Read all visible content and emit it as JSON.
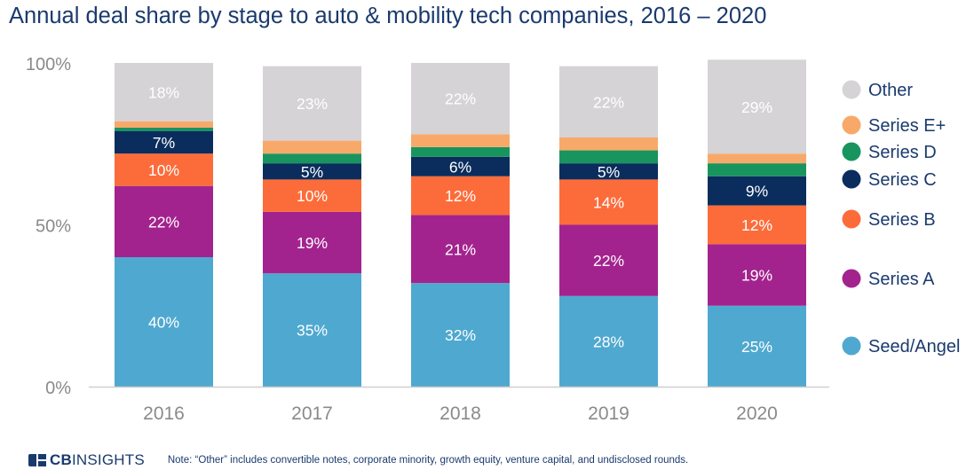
{
  "title": "Annual deal share by stage to auto & mobility tech companies, 2016 – 2020",
  "footer": {
    "logo_bold": "CB",
    "logo_light": "INSIGHTS",
    "note": "Note: “Other” includes convertible notes, corporate minority, growth equity, venture capital, and undisclosed rounds."
  },
  "chart_data": {
    "type": "bar",
    "stacked": true,
    "title": "Annual deal share by stage to auto & mobility tech companies, 2016 – 2020",
    "categories": [
      "2016",
      "2017",
      "2018",
      "2019",
      "2020"
    ],
    "y_ticks": [
      "0%",
      "50%",
      "100%"
    ],
    "ylim": [
      0,
      100
    ],
    "grid": false,
    "legend_position": "right",
    "series": [
      {
        "name": "Seed/Angel",
        "color": "#4fa8d0",
        "values": [
          40,
          35,
          32,
          28,
          25
        ],
        "labels": [
          "40%",
          "35%",
          "32%",
          "28%",
          "25%"
        ]
      },
      {
        "name": "Series A",
        "color": "#a3238e",
        "values": [
          22,
          19,
          21,
          22,
          19
        ],
        "labels": [
          "22%",
          "19%",
          "21%",
          "22%",
          "19%"
        ]
      },
      {
        "name": "Series B",
        "color": "#fc6c3a",
        "values": [
          10,
          10,
          12,
          14,
          12
        ],
        "labels": [
          "10%",
          "10%",
          "12%",
          "14%",
          "12%"
        ]
      },
      {
        "name": "Series C",
        "color": "#0a2d5e",
        "values": [
          7,
          5,
          6,
          5,
          9
        ],
        "labels": [
          "7%",
          "5%",
          "6%",
          "5%",
          "9%"
        ]
      },
      {
        "name": "Series D",
        "color": "#18955e",
        "values": [
          1,
          3,
          3,
          4,
          4
        ],
        "labels": [
          "",
          "",
          "",
          "",
          ""
        ]
      },
      {
        "name": "Series E+",
        "color": "#f8a96a",
        "values": [
          2,
          4,
          4,
          4,
          3
        ],
        "labels": [
          "",
          "",
          "",
          "",
          ""
        ]
      },
      {
        "name": "Other",
        "color": "#d5d3d6",
        "values": [
          18,
          23,
          22,
          22,
          29
        ],
        "labels": [
          "18%",
          "23%",
          "22%",
          "22%",
          "29%"
        ]
      }
    ]
  }
}
